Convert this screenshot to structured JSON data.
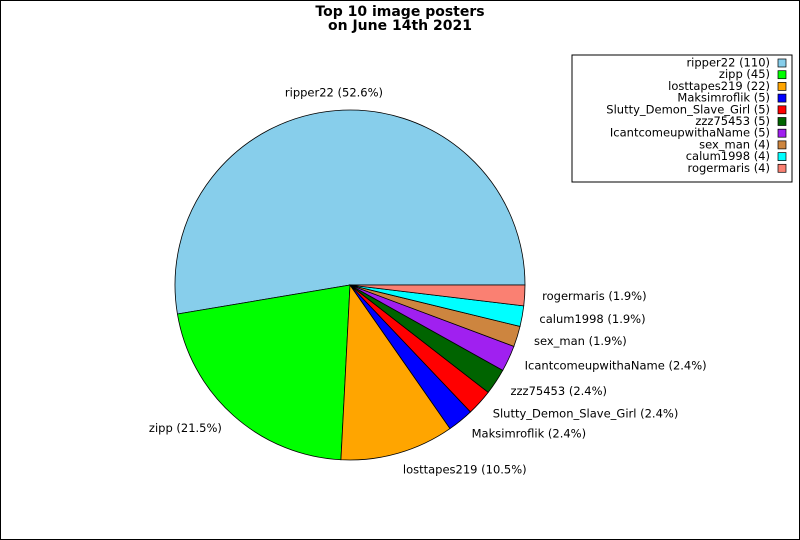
{
  "chart_data": {
    "type": "pie",
    "title": [
      "Top 10 image posters",
      "on June 14th 2021"
    ],
    "values": [
      52.6,
      21.5,
      10.5,
      2.4,
      2.4,
      2.4,
      2.4,
      1.9,
      1.9,
      1.9
    ],
    "value_labels": [
      "ripper22 (52.6%)",
      "zipp (21.5%)",
      "losttapes219 (10.5%)",
      "Maksimroflik (2.4%)",
      "Slutty_Demon_Slave_Girl (2.4%)",
      "zzz75453 (2.4%)",
      "IcantcomeupwithaName (2.4%)",
      "sex_man (1.9%)",
      "calum1998 (1.9%)",
      "rogermaris (1.9%)"
    ],
    "legend_labels": [
      "ripper22 (110)",
      "zipp (45)",
      "losttapes219 (22)",
      "Maksimroflik (5)",
      "Slutty_Demon_Slave_Girl (5)",
      "zzz75453 (5)",
      "IcantcomeupwithaName (5)",
      "sex_man (4)",
      "calum1998 (4)",
      "rogermaris (4)"
    ],
    "colors": [
      "#87ceeb",
      "#00ff00",
      "#ffa500",
      "#0000ff",
      "#ff0000",
      "#006400",
      "#a020f0",
      "#cd853f",
      "#00ffff",
      "#fa8072"
    ],
    "legend_position": "upper right"
  }
}
